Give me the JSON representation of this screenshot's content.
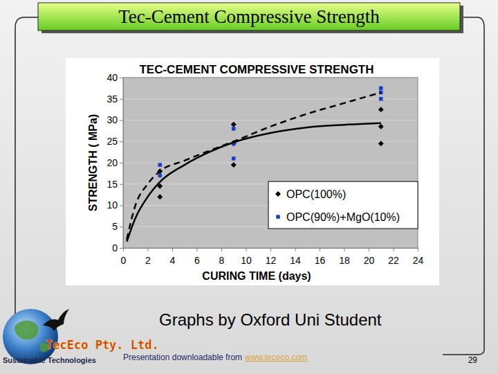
{
  "chart_data": {
    "type": "scatter",
    "title": "TEC-CEMENT COMPRESSIVE STRENGTH",
    "x_label": "CURING TIME (days)",
    "y_label": "STRENGTH ( MPa)",
    "xlim": [
      0,
      24
    ],
    "xticks": [
      0,
      2,
      4,
      6,
      8,
      10,
      12,
      14,
      16,
      18,
      20,
      22,
      24
    ],
    "ylim": [
      0,
      40
    ],
    "yticks": [
      0,
      5,
      10,
      15,
      20,
      25,
      30,
      35,
      40
    ],
    "grid": true,
    "legend": "right",
    "series": [
      {
        "name": "OPC(100%)",
        "type": "scatter",
        "marker": "diamond",
        "color": "#000000",
        "x": [
          3,
          3,
          3,
          9,
          9,
          9,
          21,
          21,
          21
        ],
        "values": [
          18,
          14.5,
          12,
          29,
          24.5,
          19.5,
          32.5,
          28.5,
          24.5
        ]
      },
      {
        "name": "OPC(90%)+MgO(10%)",
        "type": "scatter",
        "marker": "square",
        "color": "#1a3ccc",
        "x": [
          3,
          3,
          9,
          9,
          9,
          21,
          21,
          21
        ],
        "values": [
          19.5,
          17,
          28,
          24.5,
          21,
          37.5,
          36.5,
          35
        ]
      },
      {
        "type": "line",
        "line_style": "solid",
        "color": "#000000",
        "x": [
          0.3,
          1,
          2,
          3,
          5,
          7,
          9,
          12,
          15,
          18,
          21
        ],
        "values": [
          1.5,
          7,
          12,
          15.5,
          19.5,
          22.5,
          24.8,
          27,
          28.3,
          28.9,
          29.3
        ]
      },
      {
        "type": "line",
        "line_style": "dashed",
        "color": "#000000",
        "x": [
          0.3,
          1,
          2,
          3,
          5,
          7,
          9,
          12,
          15,
          18,
          21
        ],
        "values": [
          2,
          10,
          15,
          18,
          20.5,
          22.8,
          25,
          28.5,
          31.5,
          34,
          36.5
        ]
      }
    ]
  },
  "slide": {
    "title": "Tec-Cement Compressive Strength",
    "caption": "Graphs by Oxford Uni Student",
    "company": "TecEco Pty. Ltd.",
    "tagline": "Sustainable Technologies",
    "footer": "Presentation downloadable from",
    "link": "www.tececo.com",
    "page_number": 29
  }
}
